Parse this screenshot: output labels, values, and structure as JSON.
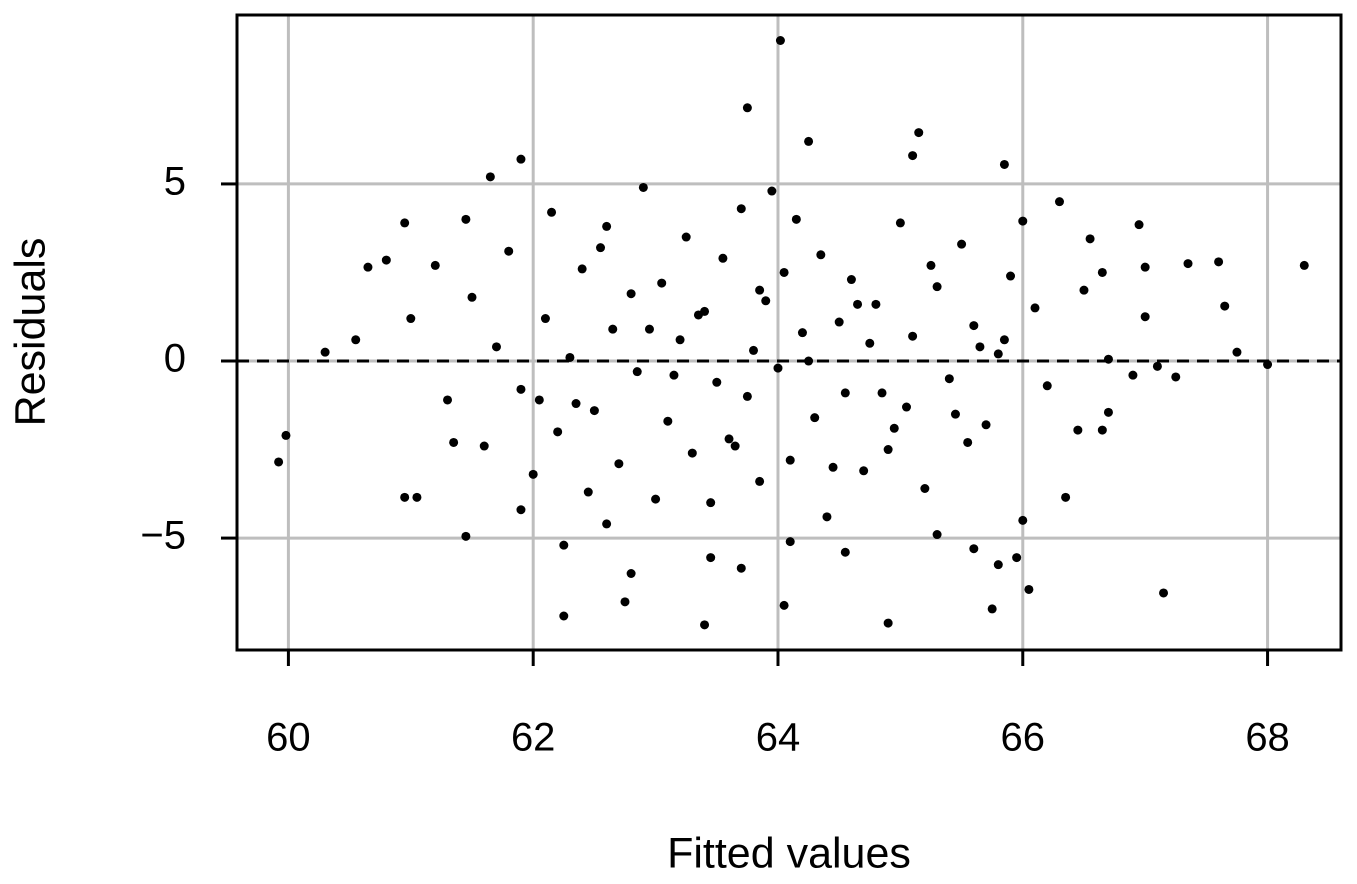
{
  "chart_data": {
    "type": "scatter",
    "x_label": "Fitted values",
    "y_label": "Residuals",
    "xlim": [
      59.58,
      68.6
    ],
    "ylim": [
      -8.16,
      9.77
    ],
    "xticks": [
      60,
      62,
      64,
      66,
      68
    ],
    "yticks": [
      {
        "value": -5,
        "label": "−5"
      },
      0,
      5
    ],
    "grid": true,
    "hline": 0,
    "color": "#000000",
    "x": [
      59.92,
      59.98,
      60.3,
      60.55,
      60.65,
      60.8,
      60.95,
      60.95,
      61.05,
      61.45,
      61.45,
      61.65,
      61.9,
      61.9,
      62.25,
      62.25,
      62.6,
      62.75,
      62.8,
      63.4,
      63.45,
      63.7,
      63.75,
      64.02,
      64.05,
      64.1,
      64.25,
      64.55,
      64.9,
      65.15,
      65.1,
      65.3,
      65.6,
      65.75,
      65.8,
      65.85,
      65.95,
      66.0,
      66.05,
      66.3,
      66.35,
      66.45,
      66.5,
      66.55,
      66.65,
      66.65,
      66.7,
      66.7,
      66.9,
      66.95,
      67.0,
      67.0,
      67.1,
      67.15,
      67.25,
      67.35,
      67.6,
      67.65,
      67.75,
      68.0,
      68.3,
      61.2,
      61.3,
      61.5,
      61.6,
      61.7,
      61.8,
      61.9,
      62.0,
      62.1,
      62.15,
      62.2,
      62.3,
      62.4,
      62.45,
      62.5,
      62.6,
      62.65,
      62.7,
      62.8,
      62.85,
      62.9,
      63.0,
      63.05,
      63.1,
      63.2,
      63.25,
      63.3,
      63.4,
      63.45,
      63.5,
      63.55,
      63.6,
      63.7,
      63.75,
      63.8,
      63.85,
      63.9,
      64.0,
      64.05,
      64.1,
      64.15,
      64.2,
      64.3,
      64.35,
      64.4,
      64.5,
      64.55,
      64.6,
      64.7,
      64.75,
      64.8,
      64.9,
      65.0,
      65.05,
      65.1,
      65.2,
      65.3,
      65.4,
      65.5,
      65.55,
      65.6,
      65.7,
      65.8,
      65.9,
      66.0,
      66.1,
      66.2,
      61.0,
      61.35,
      62.35,
      62.55,
      63.15,
      63.35,
      63.65,
      63.95,
      64.25,
      64.45,
      64.65,
      64.85,
      65.25,
      65.45,
      65.65,
      62.05,
      62.95,
      63.85,
      64.95,
      65.85
    ],
    "values": [
      -2.85,
      -2.1,
      0.25,
      0.6,
      2.65,
      2.85,
      3.9,
      -3.85,
      -3.85,
      4.0,
      -4.95,
      5.2,
      5.7,
      -4.2,
      -5.2,
      -7.2,
      -4.6,
      -6.8,
      -6.0,
      -7.45,
      -5.55,
      -5.85,
      7.15,
      9.05,
      -6.9,
      -5.1,
      6.2,
      -5.4,
      -7.4,
      6.45,
      5.8,
      -4.9,
      -5.3,
      -7.0,
      -5.75,
      5.55,
      -5.55,
      3.95,
      -6.45,
      4.5,
      -3.85,
      -1.95,
      2.0,
      3.45,
      2.5,
      -1.95,
      -1.45,
      0.05,
      -0.4,
      3.85,
      2.65,
      1.25,
      -0.15,
      -6.55,
      -0.45,
      2.75,
      2.8,
      1.55,
      0.25,
      -0.1,
      2.7,
      2.7,
      -1.1,
      1.8,
      -2.4,
      0.4,
      3.1,
      -0.8,
      -3.2,
      1.2,
      4.2,
      -2.0,
      0.1,
      2.6,
      -3.7,
      -1.4,
      3.8,
      0.9,
      -2.9,
      1.9,
      -0.3,
      4.9,
      -3.9,
      2.2,
      -1.7,
      0.6,
      3.5,
      -2.6,
      1.4,
      -4.0,
      -0.6,
      2.9,
      -2.2,
      4.3,
      -1.0,
      0.3,
      -3.4,
      1.7,
      -0.2,
      2.5,
      -2.8,
      4.0,
      0.8,
      -1.6,
      3.0,
      -4.4,
      1.1,
      -0.9,
      2.3,
      -3.1,
      0.5,
      1.6,
      -2.5,
      3.9,
      -1.3,
      0.7,
      -3.6,
      2.1,
      -0.5,
      3.3,
      -2.3,
      1.0,
      -1.8,
      0.2,
      2.4,
      -4.5,
      1.5,
      -0.7,
      1.2,
      -2.3,
      -1.2,
      3.2,
      -0.4,
      1.3,
      -2.4,
      4.8,
      0.0,
      -3.0,
      1.6,
      -0.9,
      2.7,
      -1.5,
      0.4,
      -1.1,
      0.9,
      2.0,
      -1.9,
      0.6
    ]
  }
}
